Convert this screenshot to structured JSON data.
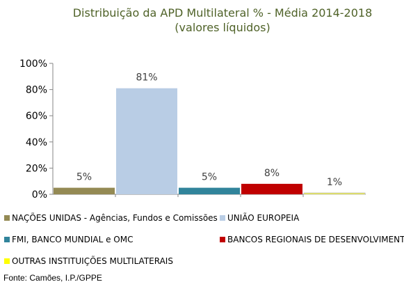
{
  "chart_data": {
    "type": "bar",
    "title": "Distribuição da APD Multilateral % - Média 2014-2018",
    "subtitle": "(valores líquidos)",
    "ylim": [
      0,
      100
    ],
    "yticks": [
      "0%",
      "20%",
      "40%",
      "60%",
      "80%",
      "100%"
    ],
    "grid": false,
    "legend_position": "bottom",
    "categories": [
      "NAÇÕES UNIDAS - Agências, Fundos e Comissões",
      "UNIÃO EUROPEIA",
      "FMI, BANCO MUNDIAL e OMC",
      "BANCOS REGIONAIS DE DESENVOLVIMENTO",
      "OUTRAS INSTITUIÇÕES MULTILATERAIS"
    ],
    "values": [
      5,
      81,
      5,
      8,
      1
    ],
    "data_labels": [
      "5%",
      "81%",
      "5%",
      "8%",
      "1%"
    ],
    "colors": [
      "#948a54",
      "#b9cde5",
      "#31849b",
      "#c00000",
      "#ffff00"
    ]
  },
  "source": "Fonte: Camões, I.P./GPPE"
}
